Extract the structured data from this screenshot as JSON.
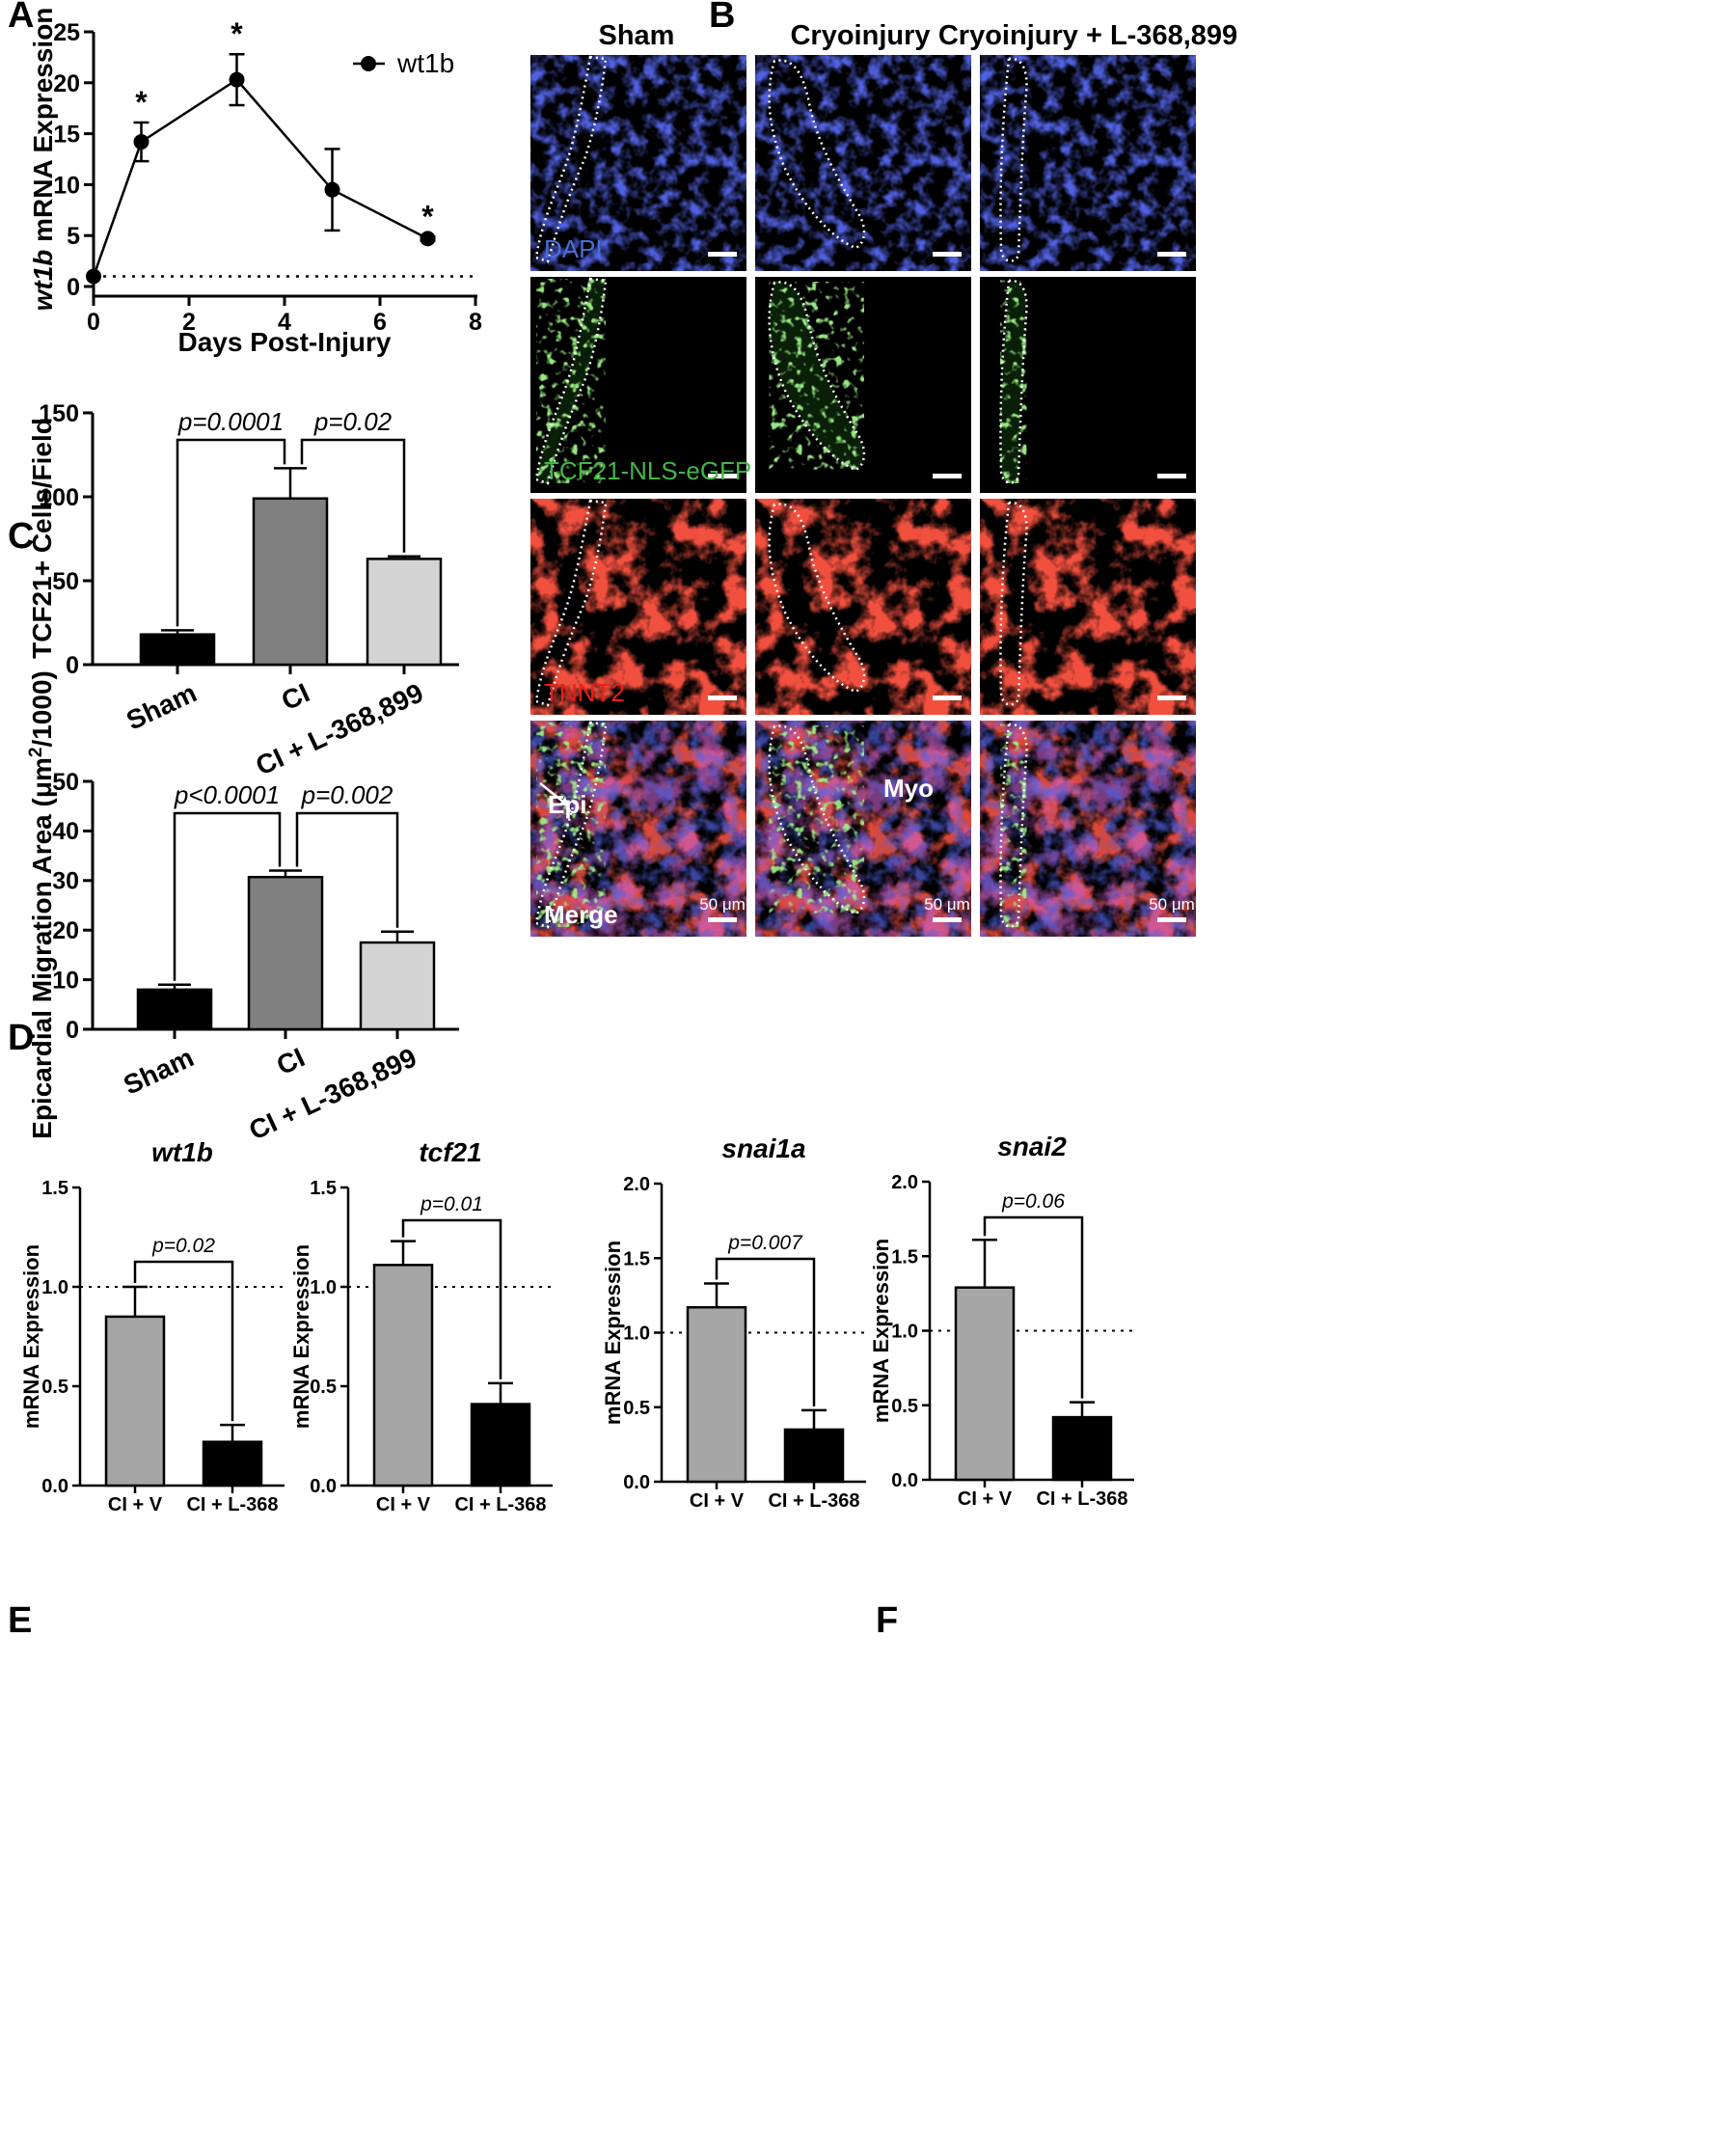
{
  "panels": {
    "A": "A",
    "B": "B",
    "C": "C",
    "D": "D",
    "E": "E",
    "F": "F"
  },
  "chart_data": [
    {
      "panel": "A",
      "type": "line",
      "xlabel": "Days Post-Injury",
      "ylabel_italic": "wt1b",
      "ylabel_rest": " mRNA Expression",
      "xlim": [
        0,
        8
      ],
      "ylim": [
        0,
        25
      ],
      "xticks": [
        "0",
        "2",
        "4",
        "6",
        "8"
      ],
      "yticks": [
        "0",
        "5",
        "10",
        "15",
        "20",
        "25"
      ],
      "baseline": 1,
      "legend": "top-right",
      "series": [
        {
          "name": "wt1b",
          "x": [
            0,
            1,
            3,
            5,
            7
          ],
          "y": [
            1.0,
            14.2,
            20.3,
            9.5,
            4.7
          ],
          "err": [
            0,
            1.9,
            2.5,
            4.0,
            0.2
          ],
          "marks": [
            "",
            "*",
            "*",
            "",
            "*"
          ]
        }
      ]
    },
    {
      "panel": "C",
      "type": "bar",
      "ylabel": "TCF21+ Cells/Field",
      "ylim": [
        0,
        150
      ],
      "yticks": [
        "0",
        "50",
        "100",
        "150"
      ],
      "categories": [
        "Sham",
        "CI",
        "CI + L-368,899"
      ],
      "values": [
        18,
        99,
        63
      ],
      "err": [
        2.5,
        18,
        1.5
      ],
      "colors": [
        "#000000",
        "#808080",
        "#d3d3d3"
      ],
      "comparisons": [
        {
          "from": 0,
          "to": 1,
          "label": "p=0.0001"
        },
        {
          "from": 1,
          "to": 2,
          "label": "p=0.02"
        }
      ]
    },
    {
      "panel": "D",
      "type": "bar",
      "ylabel_pre": "Epicardial Migration Area (μm",
      "ylabel_sup": "2",
      "ylabel_post": "/1000)",
      "ylim": [
        0,
        50
      ],
      "yticks": [
        "0",
        "10",
        "20",
        "30",
        "40",
        "50"
      ],
      "categories": [
        "Sham",
        "CI",
        "CI + L-368,899"
      ],
      "values": [
        8,
        30.7,
        17.5
      ],
      "err": [
        1.0,
        1.3,
        2.2
      ],
      "colors": [
        "#000000",
        "#808080",
        "#d3d3d3"
      ],
      "comparisons": [
        {
          "from": 0,
          "to": 1,
          "label": "p<0.0001"
        },
        {
          "from": 1,
          "to": 2,
          "label": "p=0.002"
        }
      ]
    },
    {
      "panel": "E",
      "type": "bar",
      "title": "wt1b",
      "ylabel": "mRNA Expression",
      "ylim": [
        0,
        1.5
      ],
      "yticks": [
        "0.0",
        "0.5",
        "1.0",
        "1.5"
      ],
      "baseline": 1.0,
      "categories": [
        "CI + V",
        "CI + L-368"
      ],
      "values": [
        0.85,
        0.22
      ],
      "err": [
        0.15,
        0.085
      ],
      "colors": [
        "#a6a6a6",
        "#000000"
      ],
      "comparisons": [
        {
          "from": 0,
          "to": 1,
          "label": "p=0.02"
        }
      ]
    },
    {
      "panel": "E",
      "type": "bar",
      "title": "tcf21",
      "ylabel": "mRNA Expression",
      "ylim": [
        0,
        1.5
      ],
      "yticks": [
        "0.0",
        "0.5",
        "1.0",
        "1.5"
      ],
      "baseline": 1.0,
      "categories": [
        "CI + V",
        "CI + L-368"
      ],
      "values": [
        1.11,
        0.41
      ],
      "err": [
        0.12,
        0.105
      ],
      "colors": [
        "#a6a6a6",
        "#000000"
      ],
      "comparisons": [
        {
          "from": 0,
          "to": 1,
          "label": "p=0.01"
        }
      ]
    },
    {
      "panel": "F",
      "type": "bar",
      "title": "snai1a",
      "ylabel": "mRNA Expression",
      "ylim": [
        0,
        2.0
      ],
      "yticks": [
        "0.0",
        "0.5",
        "1.0",
        "1.5",
        "2.0"
      ],
      "baseline": 1.0,
      "categories": [
        "CI + V",
        "CI + L-368"
      ],
      "values": [
        1.17,
        0.35
      ],
      "err": [
        0.16,
        0.13
      ],
      "colors": [
        "#a6a6a6",
        "#000000"
      ],
      "comparisons": [
        {
          "from": 0,
          "to": 1,
          "label": "p=0.007"
        }
      ]
    },
    {
      "panel": "F",
      "type": "bar",
      "title": "snai2",
      "ylabel": "mRNA Expression",
      "ylim": [
        0,
        2.0
      ],
      "yticks": [
        "0.0",
        "0.5",
        "1.0",
        "1.5",
        "2.0"
      ],
      "baseline": 1.0,
      "categories": [
        "CI + V",
        "CI + L-368"
      ],
      "values": [
        1.29,
        0.42
      ],
      "err": [
        0.32,
        0.1
      ],
      "colors": [
        "#a6a6a6",
        "#000000"
      ],
      "comparisons": [
        {
          "from": 0,
          "to": 1,
          "label": "p=0.06"
        }
      ]
    }
  ],
  "microscopy": {
    "columns": [
      "Sham",
      "Cryoinjury",
      "Cryoinjury + L-368,899"
    ],
    "rows": [
      {
        "label": "DAPI",
        "color": "#4a6fd6"
      },
      {
        "label": "TCF21-NLS-eGFP",
        "color": "#44b548"
      },
      {
        "label": "TNNT2",
        "color": "#e8201a"
      },
      {
        "label": "Merge",
        "color": "#ffffff"
      }
    ],
    "scale_bar": "50 μm",
    "annotations": {
      "epi": "Epi",
      "myo": "Myo"
    }
  }
}
